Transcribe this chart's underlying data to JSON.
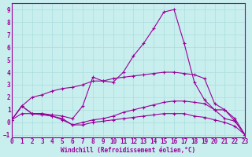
{
  "xlabel": "Windchill (Refroidissement éolien,°C)",
  "ylabel": "",
  "xlim": [
    0,
    23
  ],
  "ylim": [
    -1.2,
    9.5
  ],
  "xticks": [
    0,
    1,
    2,
    3,
    4,
    5,
    6,
    7,
    8,
    9,
    10,
    11,
    12,
    13,
    14,
    15,
    16,
    17,
    18,
    19,
    20,
    21,
    22,
    23
  ],
  "yticks": [
    -1,
    0,
    1,
    2,
    3,
    4,
    5,
    6,
    7,
    8,
    9
  ],
  "background_color": "#c8eeee",
  "line_color": "#990099",
  "grid_color": "#aadddd",
  "curves": [
    {
      "x": [
        0,
        1,
        2,
        3,
        4,
        5,
        6,
        7,
        8,
        9,
        10,
        11,
        12,
        13,
        14,
        15,
        16,
        17,
        18,
        19,
        20,
        21,
        22,
        23
      ],
      "y": [
        0.2,
        1.3,
        0.7,
        0.7,
        0.6,
        0.5,
        0.3,
        1.3,
        3.6,
        3.3,
        3.2,
        4.0,
        5.3,
        6.3,
        7.5,
        8.8,
        9.0,
        6.3,
        3.2,
        1.8,
        1.0,
        1.0,
        0.1,
        -1.0
      ]
    },
    {
      "x": [
        0,
        1,
        2,
        3,
        4,
        5,
        6,
        7,
        8,
        9,
        10,
        11,
        12,
        13,
        14,
        15,
        16,
        17,
        18,
        19,
        20,
        21,
        22,
        23
      ],
      "y": [
        0.2,
        1.3,
        0.7,
        0.7,
        0.5,
        0.2,
        -0.2,
        0.0,
        0.2,
        0.3,
        0.5,
        0.8,
        1.0,
        1.2,
        1.4,
        1.6,
        1.7,
        1.7,
        1.6,
        1.5,
        1.0,
        0.3,
        0.1,
        -1.0
      ]
    },
    {
      "x": [
        0,
        1,
        2,
        3,
        4,
        5,
        6,
        7,
        8,
        9,
        10,
        11,
        12,
        13,
        14,
        15,
        16,
        17,
        18,
        19,
        20,
        21,
        22,
        23
      ],
      "y": [
        0.2,
        0.7,
        0.7,
        0.6,
        0.5,
        0.3,
        -0.2,
        -0.2,
        0.0,
        0.1,
        0.2,
        0.3,
        0.4,
        0.5,
        0.6,
        0.7,
        0.7,
        0.7,
        0.5,
        0.4,
        0.2,
        0.0,
        -0.3,
        -1.0
      ]
    },
    {
      "x": [
        0,
        1,
        2,
        3,
        4,
        5,
        6,
        7,
        8,
        9,
        10,
        11,
        12,
        13,
        14,
        15,
        16,
        17,
        18,
        19,
        20,
        21,
        22,
        23
      ],
      "y": [
        0.2,
        1.3,
        2.0,
        2.2,
        2.5,
        2.7,
        2.8,
        3.0,
        3.3,
        3.3,
        3.5,
        3.6,
        3.7,
        3.8,
        3.9,
        4.0,
        4.0,
        3.9,
        3.8,
        3.5,
        1.5,
        1.0,
        0.3,
        -1.0
      ]
    }
  ]
}
